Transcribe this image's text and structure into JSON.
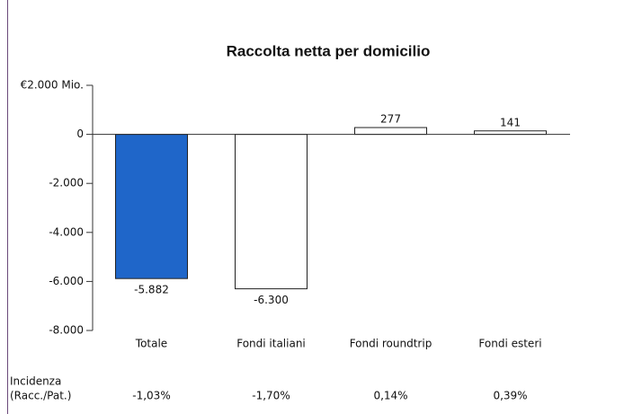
{
  "chart_data": {
    "type": "bar",
    "title": "Raccolta netta per domicilio",
    "categories": [
      "Totale",
      "Fondi italiani",
      "Fondi roundtrip",
      "Fondi esteri"
    ],
    "values": [
      -5882,
      -6300,
      277,
      141
    ],
    "value_labels": [
      "-5.882",
      "-6.300",
      "277",
      "141"
    ],
    "colors": [
      "#1f66c9",
      "#ffffff",
      "#ffffff",
      "#ffffff"
    ],
    "ylim": [
      -8000,
      2000
    ],
    "yticks": [
      {
        "value": 2000,
        "label": "€2.000 Mio."
      },
      0,
      {
        "value": -2000,
        "label": "-2.000"
      },
      {
        "value": -4000,
        "label": "-4.000"
      },
      {
        "value": -6000,
        "label": "-6.000"
      },
      {
        "value": -8000,
        "label": "-8.000"
      }
    ],
    "incidence": {
      "label": [
        "Incidenza",
        "(Racc./Pat.)"
      ],
      "values": [
        "-1,03%",
        "-1,70%",
        "0,14%",
        "0,39%"
      ]
    }
  }
}
